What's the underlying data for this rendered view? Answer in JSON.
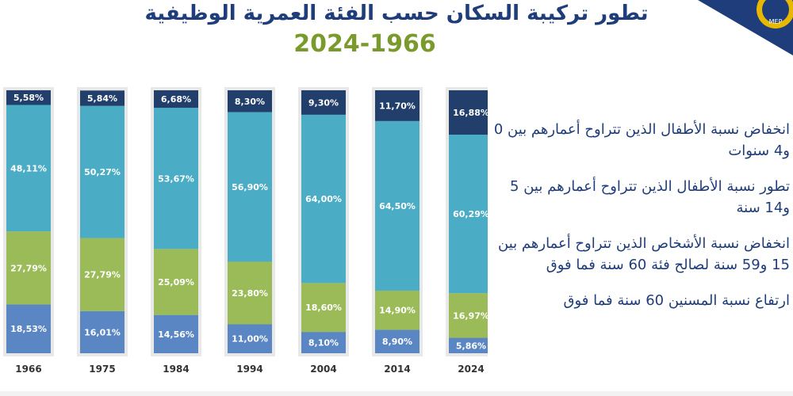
{
  "header": {
    "title": "تطور تركيبة السكان حسب الفئة العمرية الوظيفية",
    "subtitle": "2024-1966"
  },
  "notes": [
    "انخفاض نسبة الأطفال الذين تتراوح أعمارهم بين 0 و4 سنوات",
    "تطور نسبة الأطفال الذين تتراوح أعمارهم بين 5 و14 سنة",
    "انخفاض نسبة الأشخاص الذين تتراوح أعمارهم بين 15 و59 سنة لصالح فئة 60 سنة فما فوق",
    "ارتفاع نسبة المسنين 60 سنة فما فوق"
  ],
  "logo": {
    "text": "MEP"
  },
  "colors": {
    "title": "#1f3d7a",
    "subtitle": "#7a9a2e",
    "seg_bottom": "#5b86c4",
    "seg_green": "#9bbb59",
    "seg_main": "#4bacc6",
    "seg_top": "#223f6b",
    "column_bg": "#e8e8e8"
  },
  "chart_data": {
    "type": "bar",
    "stacked": true,
    "normalized": true,
    "categories": [
      "1966",
      "1975",
      "1984",
      "1994",
      "2004",
      "2014",
      "2024"
    ],
    "series": [
      {
        "values": [
          18.53,
          16.01,
          14.56,
          11.0,
          8.1,
          8.9,
          5.86
        ],
        "labels": [
          "18,53%",
          "16,01%",
          "14,56%",
          "11,00%",
          "8,10%",
          "8,90%",
          "5,86%"
        ]
      },
      {
        "values": [
          27.79,
          27.79,
          25.09,
          23.8,
          18.6,
          14.9,
          16.97
        ],
        "labels": [
          "27,79%",
          "27,79%",
          "25,09%",
          "23,80%",
          "18,60%",
          "14,90%",
          "16,97%"
        ]
      },
      {
        "values": [
          48.11,
          50.27,
          53.67,
          56.9,
          64.0,
          64.5,
          60.29
        ],
        "labels": [
          "48,11%",
          "50,27%",
          "53,67%",
          "56,90%",
          "64,00%",
          "64,50%",
          "60,29%"
        ]
      },
      {
        "values": [
          5.58,
          5.84,
          6.68,
          8.3,
          9.3,
          11.7,
          16.88
        ],
        "labels": [
          "5,58%",
          "5,84%",
          "6,68%",
          "8,30%",
          "9,30%",
          "11,70%",
          "16,88%"
        ]
      }
    ],
    "ylim": [
      0,
      100
    ],
    "grid": false,
    "legend": "none"
  }
}
